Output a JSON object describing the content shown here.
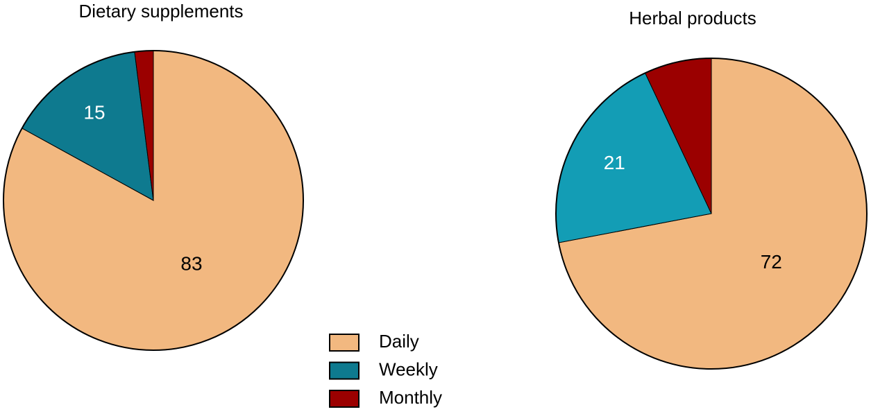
{
  "chart_data": [
    {
      "type": "pie",
      "title": "Dietary supplements",
      "categories": [
        "Daily",
        "Weekly",
        "Monthly"
      ],
      "values": [
        83,
        15,
        2
      ],
      "value_labels": [
        "83",
        "15",
        null
      ],
      "colors": [
        "#f2b880",
        "#0e7a8f",
        "#9b0000"
      ]
    },
    {
      "type": "pie",
      "title": "Herbal products",
      "categories": [
        "Daily",
        "Weekly",
        "Monthly"
      ],
      "values": [
        72,
        21,
        7
      ],
      "value_labels": [
        "72",
        "21",
        null
      ],
      "colors": [
        "#f2b880",
        "#139db5",
        "#9b0000"
      ]
    }
  ]
}
